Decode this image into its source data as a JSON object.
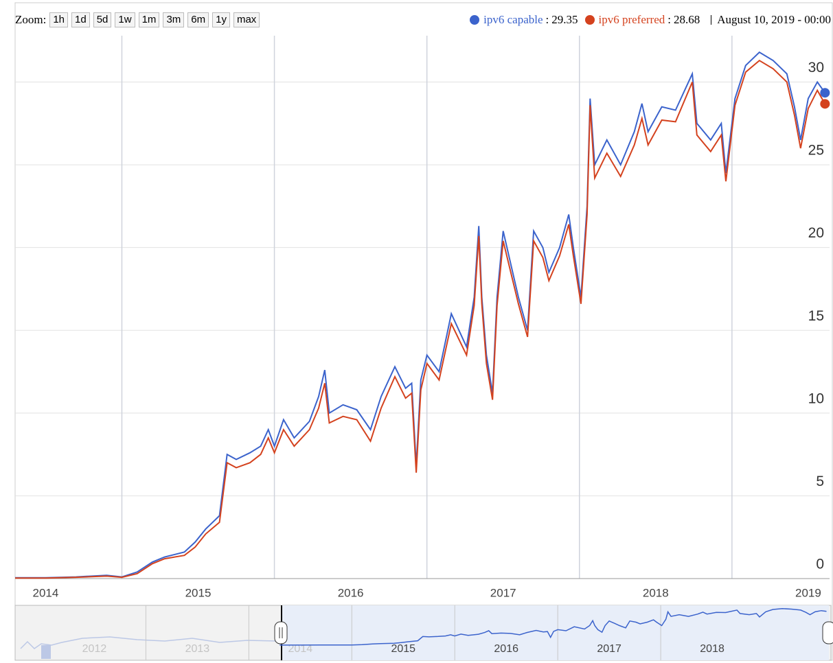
{
  "chart_data": {
    "type": "line",
    "zoom_label": "Zoom:",
    "zoom_buttons": [
      "1h",
      "1d",
      "5d",
      "1w",
      "1m",
      "3m",
      "6m",
      "1y",
      "max"
    ],
    "legend_separator": ":",
    "current_date": "August 10, 2019 - 00:00",
    "x": [
      2014.3,
      2014.5,
      2014.7,
      2014.9,
      2015.0,
      2015.1,
      2015.2,
      2015.28,
      2015.41,
      2015.48,
      2015.55,
      2015.64,
      2015.69,
      2015.75,
      2015.84,
      2015.91,
      2015.96,
      2016.0,
      2016.06,
      2016.13,
      2016.23,
      2016.29,
      2016.33,
      2016.36,
      2016.45,
      2016.54,
      2016.63,
      2016.7,
      2016.79,
      2016.86,
      2016.9,
      2016.93,
      2016.96,
      2017.0,
      2017.08,
      2017.16,
      2017.26,
      2017.31,
      2017.34,
      2017.36,
      2017.39,
      2017.43,
      2017.46,
      2017.5,
      2017.55,
      2017.6,
      2017.66,
      2017.7,
      2017.76,
      2017.8,
      2017.87,
      2017.93,
      2017.96,
      2018.01,
      2018.05,
      2018.07,
      2018.1,
      2018.18,
      2018.27,
      2018.36,
      2018.41,
      2018.45,
      2018.54,
      2018.63,
      2018.74,
      2018.77,
      2018.86,
      2018.93,
      2018.96,
      2019.02,
      2019.09,
      2019.18,
      2019.27,
      2019.36,
      2019.41,
      2019.45,
      2019.5,
      2019.56,
      2019.61
    ],
    "series": [
      {
        "name": "ipv6 capable",
        "color": "#3b63cc",
        "values": [
          0.05,
          0.05,
          0.1,
          0.2,
          0.1,
          0.4,
          1.0,
          1.3,
          1.6,
          2.2,
          3.0,
          3.8,
          7.5,
          7.2,
          7.6,
          8.0,
          9.0,
          8.0,
          9.6,
          8.5,
          9.5,
          11,
          12.6,
          10,
          10.5,
          10.2,
          9,
          11,
          12.8,
          11.5,
          11.8,
          6.8,
          12,
          13.5,
          12.5,
          16,
          14,
          17,
          21.3,
          17,
          13.5,
          11.2,
          17,
          21,
          19,
          17,
          15,
          21,
          20,
          18.5,
          20,
          22,
          20,
          17,
          22.5,
          29,
          25,
          26.5,
          25,
          27,
          28.7,
          27,
          28.5,
          28.3,
          30.5,
          27.5,
          26.5,
          27.5,
          24.5,
          29,
          31,
          31.8,
          31.3,
          30.5,
          28.5,
          26.5,
          29,
          30,
          29.35
        ]
      },
      {
        "name": "ipv6 preferred",
        "color": "#d4421e",
        "values": [
          0.03,
          0.03,
          0.08,
          0.15,
          0.08,
          0.3,
          0.9,
          1.2,
          1.4,
          1.9,
          2.7,
          3.4,
          7.0,
          6.7,
          7.0,
          7.5,
          8.5,
          7.6,
          9.0,
          8.0,
          9.0,
          10.3,
          11.8,
          9.4,
          9.8,
          9.6,
          8.3,
          10.3,
          12.2,
          10.9,
          11.2,
          6.4,
          11.4,
          13.0,
          12.0,
          15.4,
          13.5,
          16.5,
          20.7,
          16.6,
          13.0,
          10.8,
          16.5,
          20.4,
          18.5,
          16.6,
          14.6,
          20.4,
          19.4,
          18.0,
          19.5,
          21.4,
          19.5,
          16.6,
          22.0,
          28.6,
          24.2,
          25.7,
          24.3,
          26.2,
          27.8,
          26.2,
          27.7,
          27.6,
          30.0,
          26.8,
          25.8,
          26.8,
          24.0,
          28.6,
          30.6,
          31.3,
          30.8,
          30.0,
          28.0,
          26.0,
          28.4,
          29.5,
          28.68
        ]
      }
    ],
    "xlim": [
      2014.3,
      2019.64
    ],
    "xticks": [
      2015,
      2016,
      2017,
      2018,
      2019
    ],
    "x_labels": [
      2014,
      2015,
      2016,
      2017,
      2018,
      2019
    ],
    "ylim": [
      0,
      32.8
    ],
    "yticks": [
      0,
      5,
      10,
      15,
      20,
      25,
      30
    ],
    "grid": true,
    "navigator_xlim": [
      2011.73,
      2019.64
    ],
    "navigator_years": [
      2012,
      2013,
      2014,
      2015,
      2016,
      2017,
      2018
    ]
  }
}
